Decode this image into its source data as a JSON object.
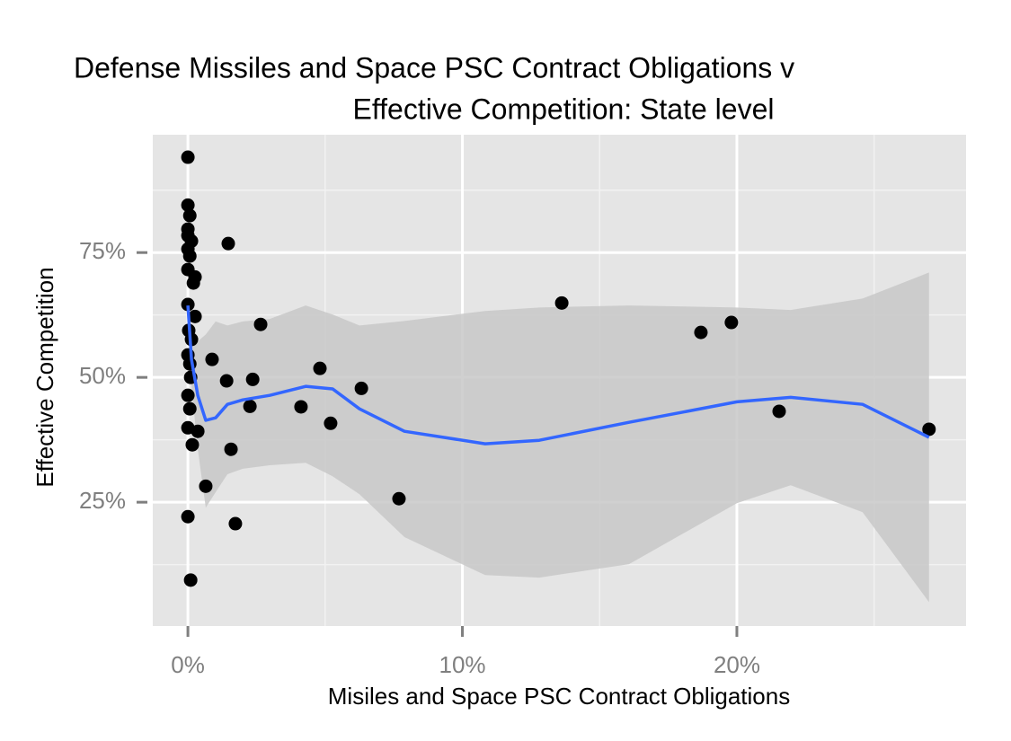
{
  "chart_data": {
    "type": "scatter",
    "title": [
      "Defense Missiles and Space PSC Contract Obligations v",
      "Effective Competition: State level"
    ],
    "x_label": "Misiles and Space PSC Contract Obligations",
    "y_label": "Effective Competition",
    "xlim": [
      -1.28,
      28.35
    ],
    "ylim": [
      0.2,
      98.6
    ],
    "xticks": [
      {
        "value": 0,
        "label": "0%"
      },
      {
        "value": 10,
        "label": "10%"
      },
      {
        "value": 20,
        "label": "20%"
      }
    ],
    "yticks": [
      {
        "value": 25,
        "label": "25%"
      },
      {
        "value": 50,
        "label": "50%"
      },
      {
        "value": 75,
        "label": "75%"
      }
    ],
    "x_minor_ticks": [
      5,
      15,
      25
    ],
    "y_minor_ticks": [
      12.5,
      37.5,
      62.5,
      87.5
    ],
    "grid": true,
    "points": {
      "color": "#000000",
      "x": [
        0,
        0,
        0.07,
        0,
        0,
        0.13,
        0,
        0.07,
        0,
        0.26,
        0.2,
        1.47,
        0,
        0.26,
        0.03,
        0.13,
        0,
        0.07,
        0.1,
        0,
        0.07,
        0,
        0.16,
        0.36,
        0.88,
        0.65,
        1.41,
        1.57,
        1.73,
        2.26,
        2.36,
        2.65,
        4.12,
        4.81,
        5.2,
        6.32,
        7.69,
        13.62,
        18.69,
        19.8,
        21.54,
        27.0,
        0,
        0.1
      ],
      "y": [
        94.1,
        84.5,
        82.4,
        79.7,
        78.4,
        77.3,
        75.7,
        74.3,
        71.6,
        70.1,
        68.9,
        76.8,
        64.6,
        62.2,
        59.4,
        57.6,
        54.5,
        52.7,
        50.0,
        46.4,
        43.7,
        39.9,
        36.5,
        39.2,
        53.6,
        28.2,
        49.3,
        35.6,
        20.7,
        44.2,
        49.6,
        60.6,
        44.1,
        51.8,
        40.8,
        47.8,
        25.7,
        64.9,
        59.0,
        61.0,
        43.2,
        39.6,
        22.1,
        9.4
      ]
    },
    "smooth": {
      "color": "#3366ff",
      "band_color": "#c8c8c8",
      "x": [
        0,
        0.13,
        0.36,
        0.65,
        1.01,
        1.44,
        2.0,
        2.98,
        4.29,
        5.27,
        6.25,
        7.89,
        10.83,
        12.8,
        16.07,
        20.0,
        21.96,
        24.58,
        27.0
      ],
      "values": [
        64.4,
        53.6,
        46.4,
        41.4,
        41.9,
        44.6,
        45.5,
        46.4,
        48.2,
        47.7,
        43.7,
        39.2,
        36.7,
        37.4,
        41.0,
        45.1,
        46.0,
        44.6,
        38.0
      ],
      "lower": [
        63.5,
        48.2,
        35.6,
        23.9,
        27.0,
        30.6,
        31.7,
        32.4,
        32.9,
        30.2,
        26.6,
        18.0,
        10.4,
        9.9,
        12.6,
        24.8,
        28.4,
        23.0,
        5.0
      ],
      "upper": [
        65.3,
        59.0,
        57.2,
        58.6,
        61.2,
        60.4,
        61.2,
        61.7,
        64.4,
        62.6,
        60.4,
        61.3,
        63.3,
        64.0,
        64.4,
        64.0,
        63.5,
        65.8,
        71.0
      ]
    }
  }
}
